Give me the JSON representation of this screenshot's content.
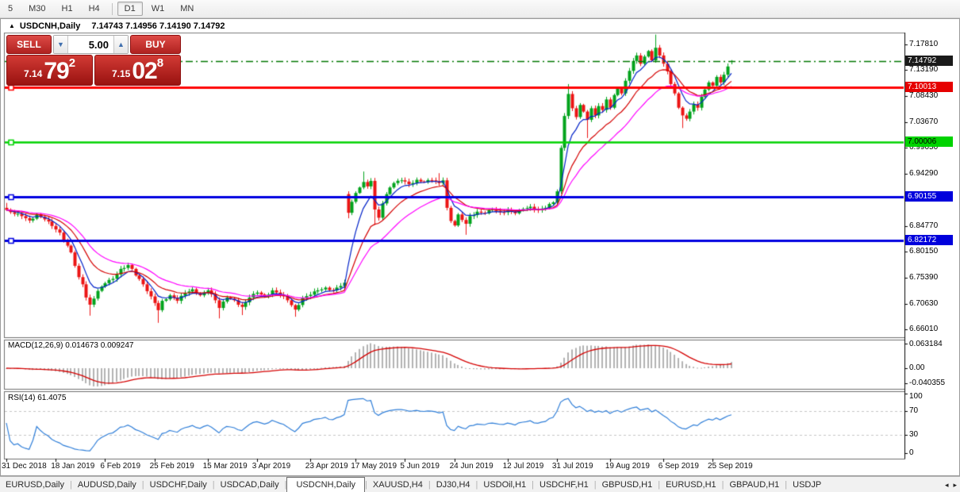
{
  "toolbar": {
    "timeframes": [
      {
        "label": "5",
        "active": false
      },
      {
        "label": "M30",
        "active": false
      },
      {
        "label": "H1",
        "active": false
      },
      {
        "label": "H4",
        "active": false
      },
      {
        "label": "D1",
        "active": true
      },
      {
        "label": "W1",
        "active": false
      },
      {
        "label": "MN",
        "active": false
      }
    ]
  },
  "chart_window": {
    "title": "USDCNH,Daily",
    "ohlc": "7.14743 7.14956 7.14190 7.14792",
    "collapse_icon": "▲"
  },
  "trade_panel": {
    "sell_label": "SELL",
    "buy_label": "BUY",
    "volume": "5.00",
    "spin_down": "▼",
    "spin_up": "▲",
    "sell_price": {
      "small": "7.14",
      "big": "79",
      "sup": "2"
    },
    "buy_price": {
      "small": "7.15",
      "big": "02",
      "sup": "8"
    }
  },
  "price_axis": {
    "ticks": [
      "7.17810",
      "7.13190",
      "7.08430",
      "7.03670",
      "6.99050",
      "6.94290",
      "6.89530",
      "6.84770",
      "6.80150",
      "6.75390",
      "6.70630",
      "6.66010"
    ]
  },
  "macd_panel": {
    "label": "MACD(12,26,9) 0.014673 0.009247",
    "axis_top": "0.063184",
    "axis_zero": "0.00",
    "axis_bottom": "-0.040355"
  },
  "rsi_panel": {
    "label": "RSI(14) 61.4075",
    "axis": [
      "100",
      "70",
      "30",
      "0"
    ],
    "levels": [
      70,
      30
    ]
  },
  "date_axis": {
    "labels": [
      "31 Dec 2018",
      "18 Jan 2019",
      "6 Feb 2019",
      "25 Feb 2019",
      "15 Mar 2019",
      "3 Apr 2019",
      "23 Apr 2019",
      "17 May 2019",
      "5 Jun 2019",
      "24 Jun 2019",
      "12 Jul 2019",
      "31 Jul 2019",
      "19 Aug 2019",
      "6 Sep 2019",
      "25 Sep 2019"
    ],
    "candle_indices": [
      0,
      13,
      26,
      39,
      53,
      66,
      80,
      92,
      105,
      118,
      132,
      145,
      159,
      173,
      186
    ]
  },
  "tabs": {
    "items": [
      {
        "label": "EURUSD,Daily",
        "active": false
      },
      {
        "label": "AUDUSD,Daily",
        "active": false
      },
      {
        "label": "USDCHF,Daily",
        "active": false
      },
      {
        "label": "USDCAD,Daily",
        "active": false
      },
      {
        "label": "USDCNH,Daily",
        "active": true
      },
      {
        "label": "XAUUSD,H4",
        "active": false
      },
      {
        "label": "DJ30,H4",
        "active": false
      },
      {
        "label": "USDOil,H1",
        "active": false
      },
      {
        "label": "USDCHF,H1",
        "active": false
      },
      {
        "label": "GBPUSD,H1",
        "active": false
      },
      {
        "label": "EURUSD,H1",
        "active": false
      },
      {
        "label": "GBPAUD,H1",
        "active": false
      },
      {
        "label": "USDJP",
        "active": false
      }
    ],
    "scroll_left": "◂",
    "scroll_right": "▸"
  },
  "chart_data": {
    "type": "candlestick",
    "symbol": "USDCNH",
    "timeframe": "Daily",
    "current": {
      "open": 7.14743,
      "high": 7.14956,
      "low": 7.1419,
      "close": 7.14792
    },
    "candle_count": 192,
    "jitter": 0.0022,
    "bull_color": "#00a31c",
    "bear_color": "#ec1414",
    "ma_lines": [
      {
        "period": 6,
        "color": "#0022c8"
      },
      {
        "period": 14,
        "color": "#d40000"
      },
      {
        "period": 24,
        "color": "#ff00ff"
      }
    ],
    "close_anchors": [
      [
        0,
        6.877
      ],
      [
        2,
        6.87
      ],
      [
        4,
        6.866
      ],
      [
        6,
        6.858
      ],
      [
        8,
        6.869
      ],
      [
        10,
        6.86
      ],
      [
        12,
        6.848
      ],
      [
        14,
        6.836
      ],
      [
        15,
        6.822
      ],
      [
        17,
        6.8
      ],
      [
        19,
        6.755
      ],
      [
        20,
        6.742
      ],
      [
        21,
        6.718
      ],
      [
        22,
        6.705
      ],
      [
        23,
        6.716
      ],
      [
        24,
        6.73
      ],
      [
        26,
        6.744
      ],
      [
        28,
        6.752
      ],
      [
        30,
        6.77
      ],
      [
        32,
        6.777
      ],
      [
        33,
        6.77
      ],
      [
        34,
        6.758
      ],
      [
        36,
        6.742
      ],
      [
        38,
        6.72
      ],
      [
        39,
        6.708
      ],
      [
        40,
        6.695
      ],
      [
        41,
        6.712
      ],
      [
        43,
        6.722
      ],
      [
        45,
        6.712
      ],
      [
        47,
        6.726
      ],
      [
        49,
        6.733
      ],
      [
        51,
        6.722
      ],
      [
        53,
        6.731
      ],
      [
        55,
        6.713
      ],
      [
        56,
        6.699
      ],
      [
        58,
        6.718
      ],
      [
        60,
        6.713
      ],
      [
        62,
        6.701
      ],
      [
        64,
        6.718
      ],
      [
        66,
        6.727
      ],
      [
        68,
        6.72
      ],
      [
        70,
        6.731
      ],
      [
        72,
        6.723
      ],
      [
        74,
        6.713
      ],
      [
        76,
        6.696
      ],
      [
        78,
        6.717
      ],
      [
        80,
        6.723
      ],
      [
        82,
        6.731
      ],
      [
        84,
        6.736
      ],
      [
        86,
        6.731
      ],
      [
        88,
        6.739
      ],
      [
        89,
        6.745
      ],
      [
        90,
        6.872
      ],
      [
        91,
        6.892
      ],
      [
        92,
        6.908
      ],
      [
        93,
        6.918
      ],
      [
        94,
        6.928
      ],
      [
        95,
        6.92
      ],
      [
        96,
        6.93
      ],
      [
        97,
        6.878
      ],
      [
        98,
        6.863
      ],
      [
        99,
        6.889
      ],
      [
        100,
        6.906
      ],
      [
        101,
        6.918
      ],
      [
        102,
        6.926
      ],
      [
        104,
        6.931
      ],
      [
        106,
        6.924
      ],
      [
        108,
        6.932
      ],
      [
        110,
        6.928
      ],
      [
        112,
        6.931
      ],
      [
        114,
        6.926
      ],
      [
        115,
        6.931
      ],
      [
        116,
        6.881
      ],
      [
        117,
        6.857
      ],
      [
        118,
        6.849
      ],
      [
        119,
        6.869
      ],
      [
        120,
        6.859
      ],
      [
        121,
        6.852
      ],
      [
        122,
        6.866
      ],
      [
        124,
        6.874
      ],
      [
        126,
        6.871
      ],
      [
        128,
        6.878
      ],
      [
        130,
        6.873
      ],
      [
        132,
        6.877
      ],
      [
        134,
        6.871
      ],
      [
        136,
        6.879
      ],
      [
        138,
        6.883
      ],
      [
        140,
        6.877
      ],
      [
        142,
        6.881
      ],
      [
        144,
        6.891
      ],
      [
        145,
        6.911
      ],
      [
        146,
        6.99
      ],
      [
        147,
        7.048
      ],
      [
        148,
        7.088
      ],
      [
        149,
        7.062
      ],
      [
        150,
        7.046
      ],
      [
        151,
        7.068
      ],
      [
        152,
        7.056
      ],
      [
        153,
        7.041
      ],
      [
        154,
        7.062
      ],
      [
        155,
        7.049
      ],
      [
        156,
        7.066
      ],
      [
        157,
        7.059
      ],
      [
        158,
        7.078
      ],
      [
        159,
        7.063
      ],
      [
        160,
        7.086
      ],
      [
        161,
        7.098
      ],
      [
        162,
        7.089
      ],
      [
        163,
        7.112
      ],
      [
        164,
        7.13
      ],
      [
        165,
        7.148
      ],
      [
        166,
        7.158
      ],
      [
        167,
        7.143
      ],
      [
        168,
        7.156
      ],
      [
        169,
        7.166
      ],
      [
        170,
        7.149
      ],
      [
        171,
        7.172
      ],
      [
        172,
        7.158
      ],
      [
        173,
        7.143
      ],
      [
        174,
        7.129
      ],
      [
        175,
        7.106
      ],
      [
        176,
        7.089
      ],
      [
        177,
        7.063
      ],
      [
        178,
        7.049
      ],
      [
        179,
        7.043
      ],
      [
        180,
        7.056
      ],
      [
        181,
        7.069
      ],
      [
        182,
        7.063
      ],
      [
        183,
        7.083
      ],
      [
        184,
        7.096
      ],
      [
        185,
        7.109
      ],
      [
        186,
        7.103
      ],
      [
        187,
        7.119
      ],
      [
        188,
        7.109
      ],
      [
        189,
        7.123
      ],
      [
        190,
        7.138
      ],
      [
        191,
        7.14792
      ]
    ],
    "open_overrides": [
      [
        90,
        6.906
      ],
      [
        191,
        7.14743
      ]
    ],
    "high_overrides": [
      [
        0,
        6.89
      ],
      [
        94,
        6.947
      ],
      [
        114,
        6.944
      ],
      [
        148,
        7.106
      ],
      [
        171,
        7.196
      ],
      [
        191,
        7.14956
      ]
    ],
    "low_overrides": [
      [
        22,
        6.685
      ],
      [
        40,
        6.672
      ],
      [
        56,
        6.68
      ],
      [
        62,
        6.686
      ],
      [
        76,
        6.683
      ],
      [
        90,
        6.862
      ],
      [
        97,
        6.85
      ],
      [
        121,
        6.832
      ],
      [
        153,
        7.008
      ],
      [
        178,
        7.026
      ],
      [
        191,
        7.1419
      ]
    ],
    "hlines": [
      {
        "price": 7.14792,
        "color": "#007800",
        "width": 1.4,
        "style": "dashdot",
        "handle": false,
        "badge": {
          "text": "7.14792",
          "bg": "#1a1a1a",
          "fg": "#ffffff"
        }
      },
      {
        "price": 7.10013,
        "color": "#ff0000",
        "width": 3,
        "style": "solid",
        "handle": true,
        "badge": {
          "text": "7.10013",
          "bg": "#e60000",
          "fg": "#ffffff"
        }
      },
      {
        "price": 7.00006,
        "color": "#00d300",
        "width": 2.5,
        "style": "solid",
        "handle": true,
        "badge": {
          "text": "7.00006",
          "bg": "#00d300",
          "fg": "#000000"
        }
      },
      {
        "price": 6.90155,
        "color": "#0000e0",
        "width": 3,
        "style": "solid",
        "handle": true,
        "badge": {
          "text": "6.90155",
          "bg": "#0000dc",
          "fg": "#ffffff"
        }
      },
      {
        "price": 6.82172,
        "color": "#0000e0",
        "width": 3,
        "style": "solid",
        "handle": true,
        "badge": {
          "text": "6.82172",
          "bg": "#0000dc",
          "fg": "#ffffff"
        }
      }
    ],
    "macd": {
      "fast": 12,
      "slow": 26,
      "signal": 9,
      "value": 0.014673,
      "signal_value": 0.009247,
      "hist_color": "#b2b2b2",
      "signal_color": "#d40000",
      "scale_max": 0.063184,
      "scale_min": -0.040355
    },
    "rsi": {
      "period": 14,
      "value": 61.4075,
      "color": "#2f7ed8",
      "level_color": "#c4c4c4"
    }
  }
}
